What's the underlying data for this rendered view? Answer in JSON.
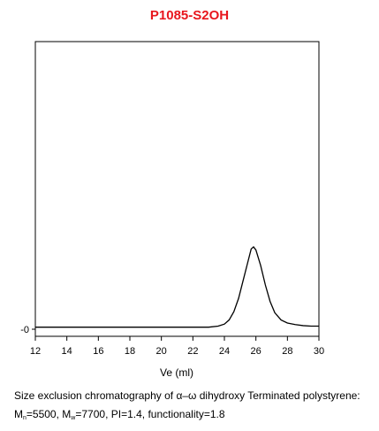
{
  "chart_data": {
    "type": "line",
    "title": "P1085-S2OH",
    "xlabel": "Ve (ml)",
    "ylabel": "",
    "xlim": [
      12,
      30
    ],
    "x_ticks": [
      12,
      14,
      16,
      18,
      20,
      22,
      24,
      26,
      28,
      30
    ],
    "y_tick_labels": [
      "-0"
    ],
    "grid": false,
    "series": [
      {
        "color": "#000000",
        "points": [
          [
            12.0,
            0.02
          ],
          [
            14.0,
            0.02
          ],
          [
            16.0,
            0.02
          ],
          [
            18.0,
            0.02
          ],
          [
            20.0,
            0.02
          ],
          [
            22.0,
            0.02
          ],
          [
            23.0,
            0.02
          ],
          [
            23.6,
            0.03
          ],
          [
            24.0,
            0.05
          ],
          [
            24.3,
            0.09
          ],
          [
            24.6,
            0.17
          ],
          [
            24.9,
            0.3
          ],
          [
            25.2,
            0.48
          ],
          [
            25.5,
            0.66
          ],
          [
            25.7,
            0.78
          ],
          [
            25.85,
            0.8
          ],
          [
            26.0,
            0.77
          ],
          [
            26.3,
            0.62
          ],
          [
            26.6,
            0.43
          ],
          [
            26.9,
            0.27
          ],
          [
            27.2,
            0.16
          ],
          [
            27.6,
            0.09
          ],
          [
            28.0,
            0.06
          ],
          [
            28.5,
            0.045
          ],
          [
            29.0,
            0.035
          ],
          [
            29.5,
            0.03
          ],
          [
            30.0,
            0.03
          ]
        ]
      }
    ]
  },
  "caption": {
    "line1_prefix": "Size exclusion chromatography of ",
    "line1_symbol": "α–ω",
    "line1_suffix": " dihydroxy Terminated polystyrene:",
    "mn_base": "M",
    "mn_sub": "n",
    "mn_value": "=5500,",
    "mw_base": "M",
    "mw_sub": "w",
    "mw_value": "=7700,",
    "rest": "PI=1.4, functionality=1.8"
  }
}
